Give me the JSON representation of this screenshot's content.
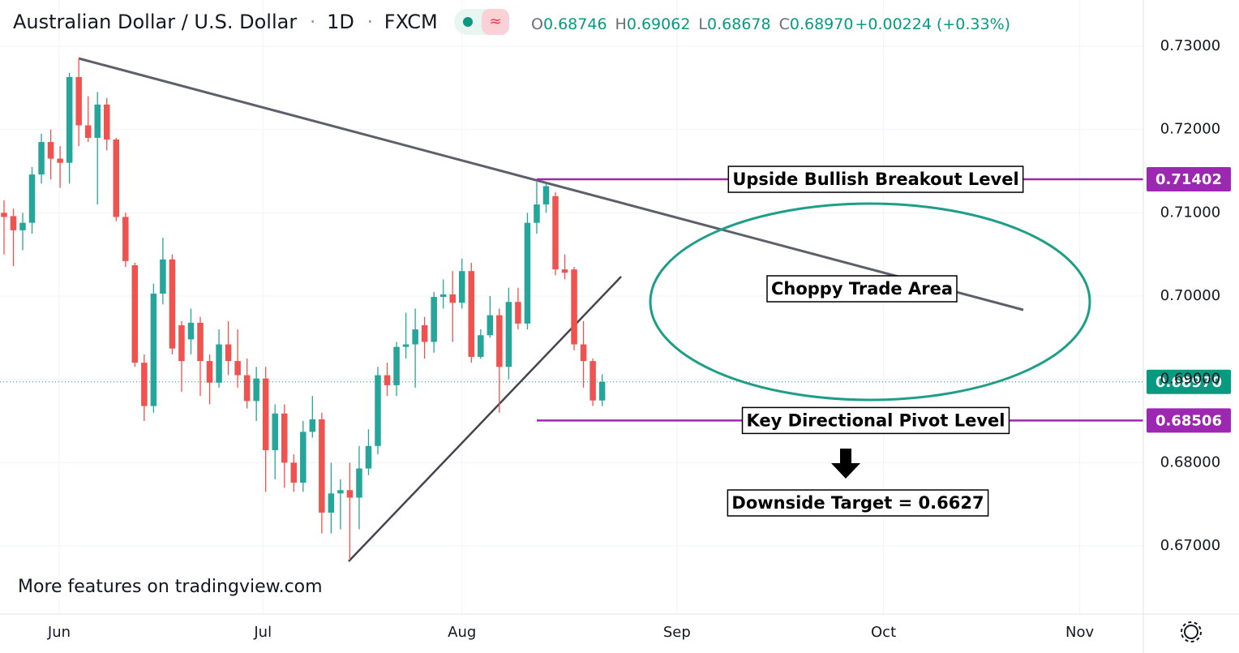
{
  "chart_data": {
    "type": "candlestick",
    "header": {
      "symbol": "Australian Dollar / U.S. Dollar",
      "interval": "1D",
      "exchange": "FXCM",
      "ohlc": [
        {
          "letter": "O",
          "value": "0.68746"
        },
        {
          "letter": "H",
          "value": "0.69062"
        },
        {
          "letter": "L",
          "value": "0.68678"
        },
        {
          "letter": "C",
          "value": "0.68970"
        }
      ],
      "change": "+0.00224",
      "change_pct": "(+0.33%)"
    },
    "up_color": "#26a69a",
    "down_color": "#ef5350",
    "open": [
      0.71,
      0.7096,
      0.7079,
      0.7088,
      0.7146,
      0.7185,
      0.7165,
      0.716,
      0.7263,
      0.7205,
      0.719,
      0.723,
      0.7188,
      0.7095,
      0.7037,
      0.692,
      0.6868,
      0.7003,
      0.7044,
      0.6965,
      0.6948,
      0.6968,
      0.6922,
      0.6896,
      0.6942,
      0.6922,
      0.6905,
      0.6874,
      0.6901,
      0.6815,
      0.6859,
      0.68,
      0.6776,
      0.6837,
      0.6852,
      0.674,
      0.6763,
      0.6767,
      0.6758,
      0.6793,
      0.682,
      0.6905,
      0.6893,
      0.6939,
      0.6942,
      0.6965,
      0.6945,
      0.6999,
      0.7002,
      0.6992,
      0.703,
      0.6927,
      0.6953,
      0.6977,
      0.6915,
      0.6993,
      0.6967,
      0.7088,
      0.711,
      0.712,
      0.7032,
      0.7032,
      0.6942,
      0.6922,
      0.68746
    ],
    "high": [
      0.7115,
      0.7105,
      0.71,
      0.7155,
      0.7195,
      0.72,
      0.718,
      0.7268,
      0.7285,
      0.724,
      0.7245,
      0.7238,
      0.719,
      0.71,
      0.704,
      0.693,
      0.7015,
      0.707,
      0.705,
      0.697,
      0.6985,
      0.6975,
      0.693,
      0.696,
      0.697,
      0.696,
      0.6925,
      0.6915,
      0.6915,
      0.687,
      0.687,
      0.681,
      0.685,
      0.688,
      0.686,
      0.68,
      0.678,
      0.68,
      0.682,
      0.684,
      0.6915,
      0.692,
      0.6945,
      0.698,
      0.6985,
      0.6975,
      0.7005,
      0.702,
      0.703,
      0.7045,
      0.704,
      0.696,
      0.7,
      0.6985,
      0.701,
      0.701,
      0.71,
      0.7137,
      0.7135,
      0.7125,
      0.705,
      0.7035,
      0.697,
      0.6925,
      0.69062
    ],
    "low": [
      0.705,
      0.7036,
      0.7055,
      0.7075,
      0.7135,
      0.714,
      0.713,
      0.7135,
      0.718,
      0.7185,
      0.711,
      0.7175,
      0.709,
      0.7035,
      0.6915,
      0.685,
      0.686,
      0.699,
      0.693,
      0.6885,
      0.693,
      0.688,
      0.687,
      0.689,
      0.6905,
      0.689,
      0.6865,
      0.685,
      0.6765,
      0.678,
      0.677,
      0.6765,
      0.6765,
      0.683,
      0.6715,
      0.6715,
      0.672,
      0.6683,
      0.672,
      0.6785,
      0.681,
      0.688,
      0.688,
      0.6925,
      0.689,
      0.6925,
      0.6932,
      0.6985,
      0.6945,
      0.6985,
      0.692,
      0.6925,
      0.695,
      0.686,
      0.69,
      0.696,
      0.696,
      0.7075,
      0.71,
      0.7025,
      0.702,
      0.6935,
      0.689,
      0.6868,
      0.68678
    ],
    "close": [
      0.7095,
      0.7079,
      0.7088,
      0.7146,
      0.7185,
      0.7165,
      0.716,
      0.7263,
      0.7205,
      0.719,
      0.723,
      0.7188,
      0.7095,
      0.7042,
      0.692,
      0.6868,
      0.7003,
      0.7044,
      0.6937,
      0.6922,
      0.6968,
      0.6922,
      0.6896,
      0.6942,
      0.6922,
      0.6905,
      0.6874,
      0.6901,
      0.6815,
      0.6859,
      0.68,
      0.6776,
      0.6837,
      0.6852,
      0.674,
      0.6763,
      0.6767,
      0.6758,
      0.6793,
      0.682,
      0.6905,
      0.6893,
      0.6939,
      0.6942,
      0.696,
      0.6945,
      0.6999,
      0.7002,
      0.6992,
      0.703,
      0.6927,
      0.6953,
      0.6977,
      0.6915,
      0.6993,
      0.6967,
      0.7088,
      0.711,
      0.7132,
      0.7032,
      0.7028,
      0.6942,
      0.6922,
      0.68746,
      0.6897
    ],
    "xlim": [
      -0.43,
      121.9
    ],
    "xticks": [
      {
        "value": 5.9,
        "label": "Jun"
      },
      {
        "value": 27.7,
        "label": "Jul"
      },
      {
        "value": 49.0,
        "label": "Aug"
      },
      {
        "value": 72.0,
        "label": "Sep"
      },
      {
        "value": 94.1,
        "label": "Oct"
      },
      {
        "value": 115.1,
        "label": "Nov"
      }
    ],
    "ylim": [
      0.66182,
      0.73555
    ],
    "yticks": [
      {
        "value": 0.67,
        "label": "0.67000"
      },
      {
        "value": 0.68,
        "label": "0.68000"
      },
      {
        "value": 0.69,
        "label": "0.69000"
      },
      {
        "value": 0.7,
        "label": "0.70000"
      },
      {
        "value": 0.71,
        "label": "0.71000"
      },
      {
        "value": 0.72,
        "label": "0.72000"
      },
      {
        "value": 0.73,
        "label": "0.73000"
      }
    ],
    "grid": true,
    "last_price": {
      "value": 0.6897,
      "label": "0.68970",
      "color": "#089981"
    },
    "levels": [
      {
        "value": 0.71402,
        "label": "0.71402",
        "text": "Upside Bullish Breakout Level",
        "color": "#9c27b0"
      },
      {
        "value": 0.68506,
        "label": "0.68506",
        "text": "Key Directional Pivot Level",
        "color": "#9c27b0"
      }
    ],
    "annotations": {
      "choppy": "Choppy Trade Area",
      "target": "Downside Target = 0.6627"
    },
    "footer": "More features on tradingview.com"
  }
}
